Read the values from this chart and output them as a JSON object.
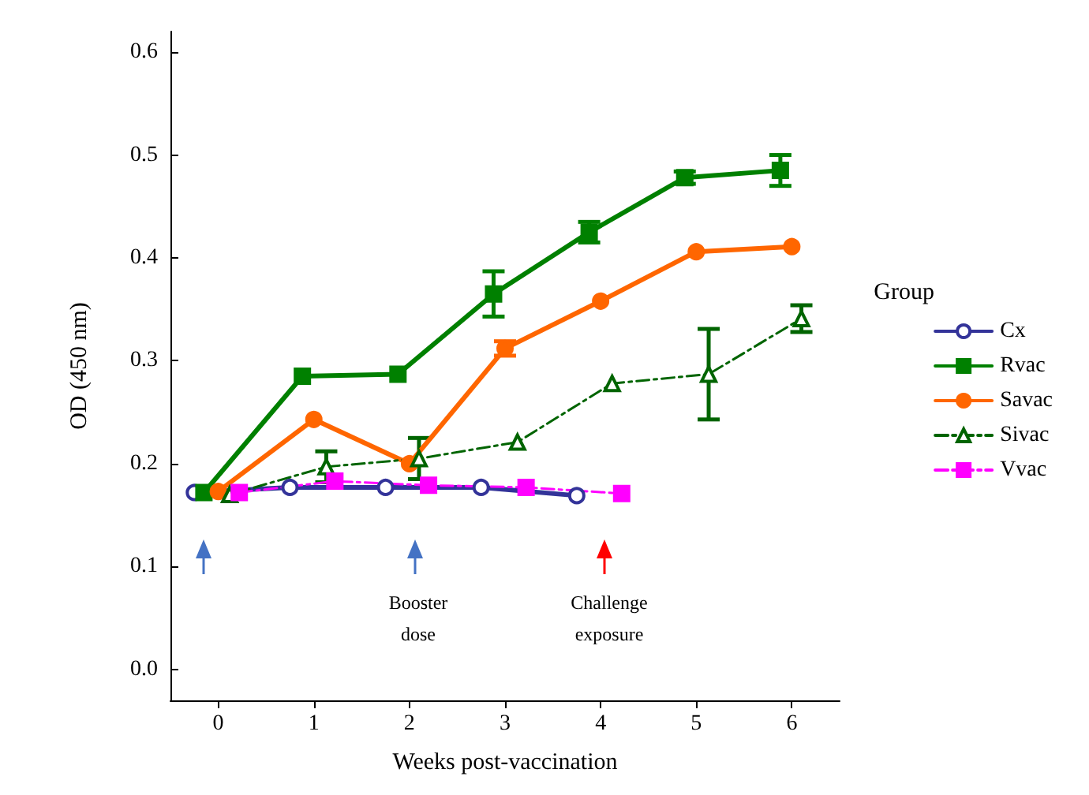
{
  "chart_data": {
    "type": "line",
    "xlabel": "Weeks post-vaccination",
    "ylabel": "OD (450 nm)",
    "legend_title": "Group",
    "legend": "right",
    "grid": false,
    "xlim": [
      -0.5,
      6.5
    ],
    "xticks": [
      0,
      1,
      2,
      3,
      4,
      5,
      6
    ],
    "ylim": [
      -0.03,
      0.62
    ],
    "yticks": [
      {
        "value": 0,
        "label": "0.0"
      },
      {
        "value": 0.1,
        "label": "0.1"
      },
      {
        "value": 0.2,
        "label": "0.2"
      },
      {
        "value": 0.3,
        "label": "0.3"
      },
      {
        "value": 0.4,
        "label": "0.4"
      },
      {
        "value": 0.5,
        "label": "0.5"
      },
      {
        "value": 0.6,
        "label": "0.6"
      }
    ],
    "annotations": [
      "Booster dose",
      "Challenge exposure"
    ],
    "series": [
      {
        "name": "Cx",
        "color": "#333399",
        "marker": "circle",
        "line_style": "solid",
        "x": [
          -0.25,
          0.75,
          1.75,
          2.75,
          3.75
        ],
        "values": [
          0.172,
          0.177,
          0.177,
          0.177,
          0.169
        ],
        "errors": [
          null,
          null,
          null,
          null,
          null
        ]
      },
      {
        "name": "Rvac",
        "color": "#008000",
        "marker": "square",
        "line_style": "solid",
        "x": [
          -0.15,
          0.88,
          1.88,
          2.88,
          3.88,
          4.88,
          5.88
        ],
        "values": [
          0.172,
          0.285,
          0.287,
          0.365,
          0.425,
          0.478,
          0.485
        ],
        "errors": [
          null,
          null,
          null,
          0.022,
          0.01,
          0.006,
          0.015
        ]
      },
      {
        "name": "Savac",
        "color": "#ff6600",
        "marker": "circle",
        "line_style": "solid",
        "x": [
          0,
          1,
          2,
          3,
          4,
          5,
          6
        ],
        "values": [
          0.173,
          0.243,
          0.2,
          0.312,
          0.358,
          0.406,
          0.411
        ],
        "errors": [
          null,
          null,
          null,
          0.007,
          null,
          null,
          null
        ]
      },
      {
        "name": "Sivac",
        "color": "#006400",
        "marker": "triangle",
        "line_style": "dashed",
        "x": [
          0.12,
          1.13,
          2.1,
          3.13,
          4.12,
          5.13,
          6.1
        ],
        "values": [
          0.17,
          0.197,
          0.205,
          0.221,
          0.278,
          0.287,
          0.341
        ],
        "errors": [
          null,
          0.015,
          0.02,
          null,
          null,
          0.044,
          0.013
        ]
      },
      {
        "name": "Vvac",
        "color": "#ff00ff",
        "marker": "square",
        "line_style": "dashed",
        "x": [
          0.22,
          1.22,
          2.2,
          3.22,
          4.22
        ],
        "values": [
          0.172,
          0.183,
          0.179,
          0.177,
          0.171
        ],
        "errors": [
          null,
          null,
          null,
          null,
          null
        ]
      }
    ]
  }
}
